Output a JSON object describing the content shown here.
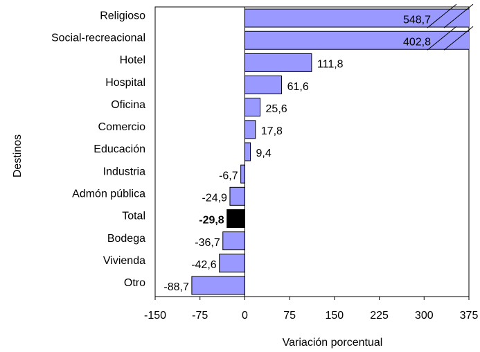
{
  "chart_data": {
    "type": "bar",
    "orientation": "horizontal",
    "categories": [
      "Religioso",
      "Social-recreacional",
      "Hotel",
      "Hospital",
      "Oficina",
      "Comercio",
      "Educación",
      "Industria",
      "Admón pública",
      "Total",
      "Bodega",
      "Vivienda",
      "Otro"
    ],
    "values": [
      548.7,
      402.8,
      111.8,
      61.6,
      25.6,
      17.8,
      9.4,
      -6.7,
      -24.9,
      -29.8,
      -36.7,
      -42.6,
      -88.7
    ],
    "value_labels": [
      "548,7",
      "402,8",
      "111,8",
      "61,6",
      "25,6",
      "17,8",
      "9,4",
      "-6,7",
      "-24,9",
      "-29,8",
      "-36,7",
      "-42,6",
      "-88,7"
    ],
    "colors": [
      "#9999ff",
      "#9999ff",
      "#9999ff",
      "#9999ff",
      "#9999ff",
      "#9999ff",
      "#9999ff",
      "#9999ff",
      "#9999ff",
      "#000000",
      "#9999ff",
      "#9999ff",
      "#9999ff"
    ],
    "xlim": [
      -150,
      375
    ],
    "xticks": [
      -150,
      -75,
      0,
      75,
      150,
      225,
      300,
      375
    ],
    "x_label": "Variación porcentual",
    "y_label": "Destinos"
  }
}
